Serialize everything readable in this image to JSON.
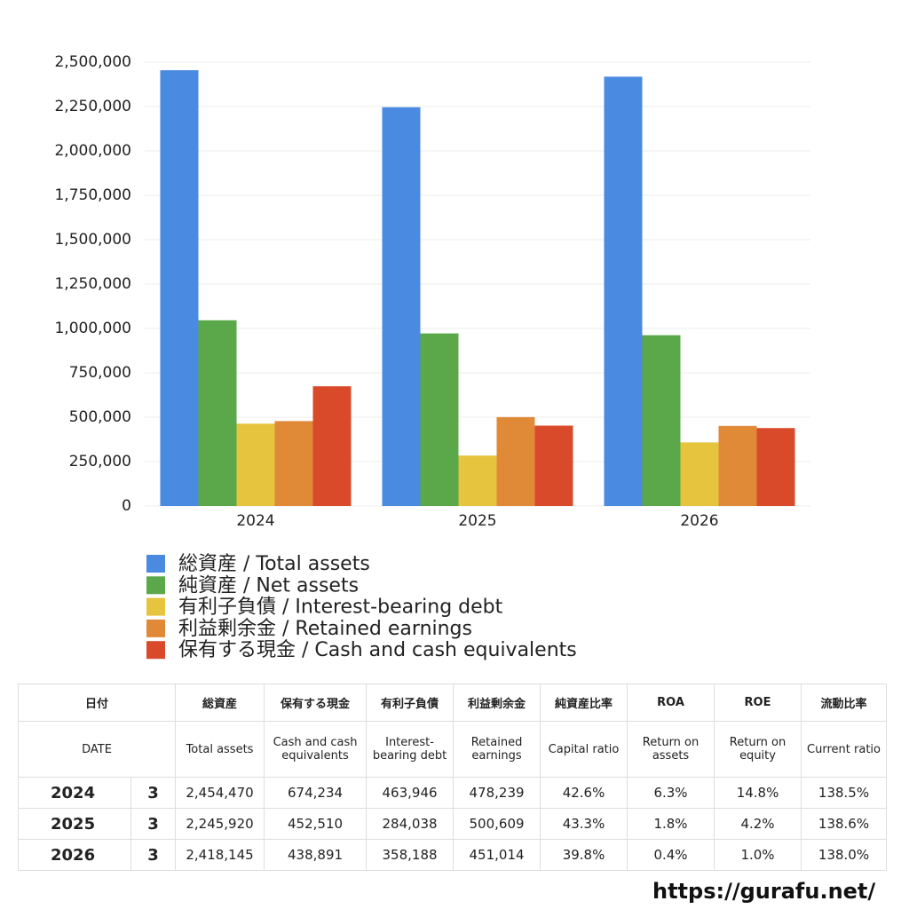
{
  "chart_data": {
    "type": "bar",
    "categories": [
      "2024",
      "2025",
      "2026"
    ],
    "series": [
      {
        "name": "総資産 / Total assets",
        "color": "#4a8ae0",
        "values": [
          2454470,
          2245920,
          2418145
        ]
      },
      {
        "name": "純資産 / Net assets",
        "color": "#5aa84a",
        "values": [
          1046000,
          972000,
          962000
        ]
      },
      {
        "name": "有利子負債 / Interest-bearing debt",
        "color": "#e6c43e",
        "values": [
          463946,
          284038,
          358188
        ]
      },
      {
        "name": "利益剰余金 / Retained earnings",
        "color": "#e08a38",
        "values": [
          478239,
          500609,
          451014
        ]
      },
      {
        "name": "保有する現金 /  Cash and cash equivalents",
        "color": "#d84a2a",
        "values": [
          674234,
          452510,
          438891
        ]
      }
    ],
    "ylim": [
      0,
      2500000
    ],
    "yticks": [
      0,
      {
        "value": 250000,
        "label": "250,000"
      },
      {
        "value": 500000,
        "label": "500,000"
      },
      {
        "value": 750000,
        "label": "750,000"
      },
      {
        "value": 1000000,
        "label": "1,000,000"
      },
      {
        "value": 1250000,
        "label": "1,250,000"
      },
      {
        "value": 1500000,
        "label": "1,500,000"
      },
      {
        "value": 1750000,
        "label": "1,750,000"
      },
      {
        "value": 2000000,
        "label": "2,000,000"
      },
      {
        "value": 2250000,
        "label": "2,250,000"
      },
      {
        "value": 2500000,
        "label": "2,500,000"
      }
    ],
    "grid": true
  },
  "table": {
    "date_header": {
      "ja": "日付",
      "en": "DATE"
    },
    "columns": [
      {
        "ja": "総資産",
        "en": "Total assets"
      },
      {
        "ja": "保有する現金",
        "en": "Cash and cash equivalents"
      },
      {
        "ja": "有利子負債",
        "en": "Interest-bearing debt"
      },
      {
        "ja": "利益剰余金",
        "en": "Retained earnings"
      },
      {
        "ja": "純資産比率",
        "en": "Capital ratio"
      },
      {
        "ja": "ROA",
        "en": "Return on assets"
      },
      {
        "ja": "ROE",
        "en": "Return on equity"
      },
      {
        "ja": "流動比率",
        "en": "Current ratio"
      }
    ],
    "rows": [
      {
        "year": "2024",
        "month": "3",
        "cells": [
          "2,454,470",
          "674,234",
          "463,946",
          "478,239",
          "42.6%",
          "6.3%",
          "14.8%",
          "138.5%"
        ]
      },
      {
        "year": "2025",
        "month": "3",
        "cells": [
          "2,245,920",
          "452,510",
          "284,038",
          "500,609",
          "43.3%",
          "1.8%",
          "4.2%",
          "138.6%"
        ]
      },
      {
        "year": "2026",
        "month": "3",
        "cells": [
          "2,418,145",
          "438,891",
          "358,188",
          "451,014",
          "39.8%",
          "0.4%",
          "1.0%",
          "138.0%"
        ]
      }
    ]
  },
  "footer": {
    "url": "https://gurafu.net/"
  }
}
